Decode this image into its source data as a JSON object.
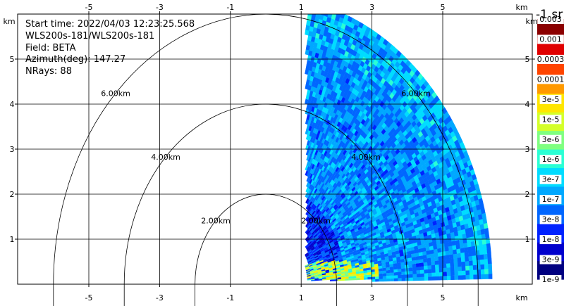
{
  "chart_data": {
    "type": "heatmap",
    "plot_kind": "radar RHI sector scan (polar pcolor)",
    "info": {
      "start_time": "Start time: 2022/04/03 12:23:25.568",
      "instrument": "WLS200s-181/WLS200s-181",
      "field": "Field: BETA",
      "azimuth": "Azimuth(deg): 147.27",
      "nrays": "NRays: 88"
    },
    "x_unit_label": "km",
    "y_unit_label": "km",
    "xlim": [
      -6,
      6
    ],
    "ylim": [
      0,
      6
    ],
    "x_ticks": [
      "-5",
      "-3",
      "-1",
      "1",
      "3",
      "5"
    ],
    "y_ticks": [
      "1",
      "2",
      "3",
      "4",
      "5"
    ],
    "rings": [
      {
        "radius_km": 2,
        "label": "2.00km"
      },
      {
        "radius_km": 4,
        "label": "4.00km"
      },
      {
        "radius_km": 6,
        "label": "6.00km"
      }
    ],
    "scan": {
      "x_start_km": 1.15,
      "y_min_km": 0.08,
      "max_range_km": 6.4,
      "elevation_deg": [
        0,
        90
      ],
      "n_rays": 88
    },
    "colorbar": {
      "title": "-1 sr",
      "labels": [
        "0.003",
        "0.001",
        "0.0003",
        "0.0001",
        "3e-5",
        "1e-5",
        "3e-6",
        "1e-6",
        "3e-7",
        "1e-7",
        "3e-8",
        "1e-8",
        "3e-9",
        "1e-9"
      ],
      "scale": "log",
      "range": [
        1e-09,
        0.003
      ],
      "colors": [
        "#000080",
        "#0000cd",
        "#0022ff",
        "#0066ff",
        "#00a8ff",
        "#00dcff",
        "#2affd4",
        "#7fff80",
        "#d4ff2a",
        "#ffe600",
        "#ff9900",
        "#ff4400",
        "#e00000",
        "#8b0000"
      ]
    }
  }
}
